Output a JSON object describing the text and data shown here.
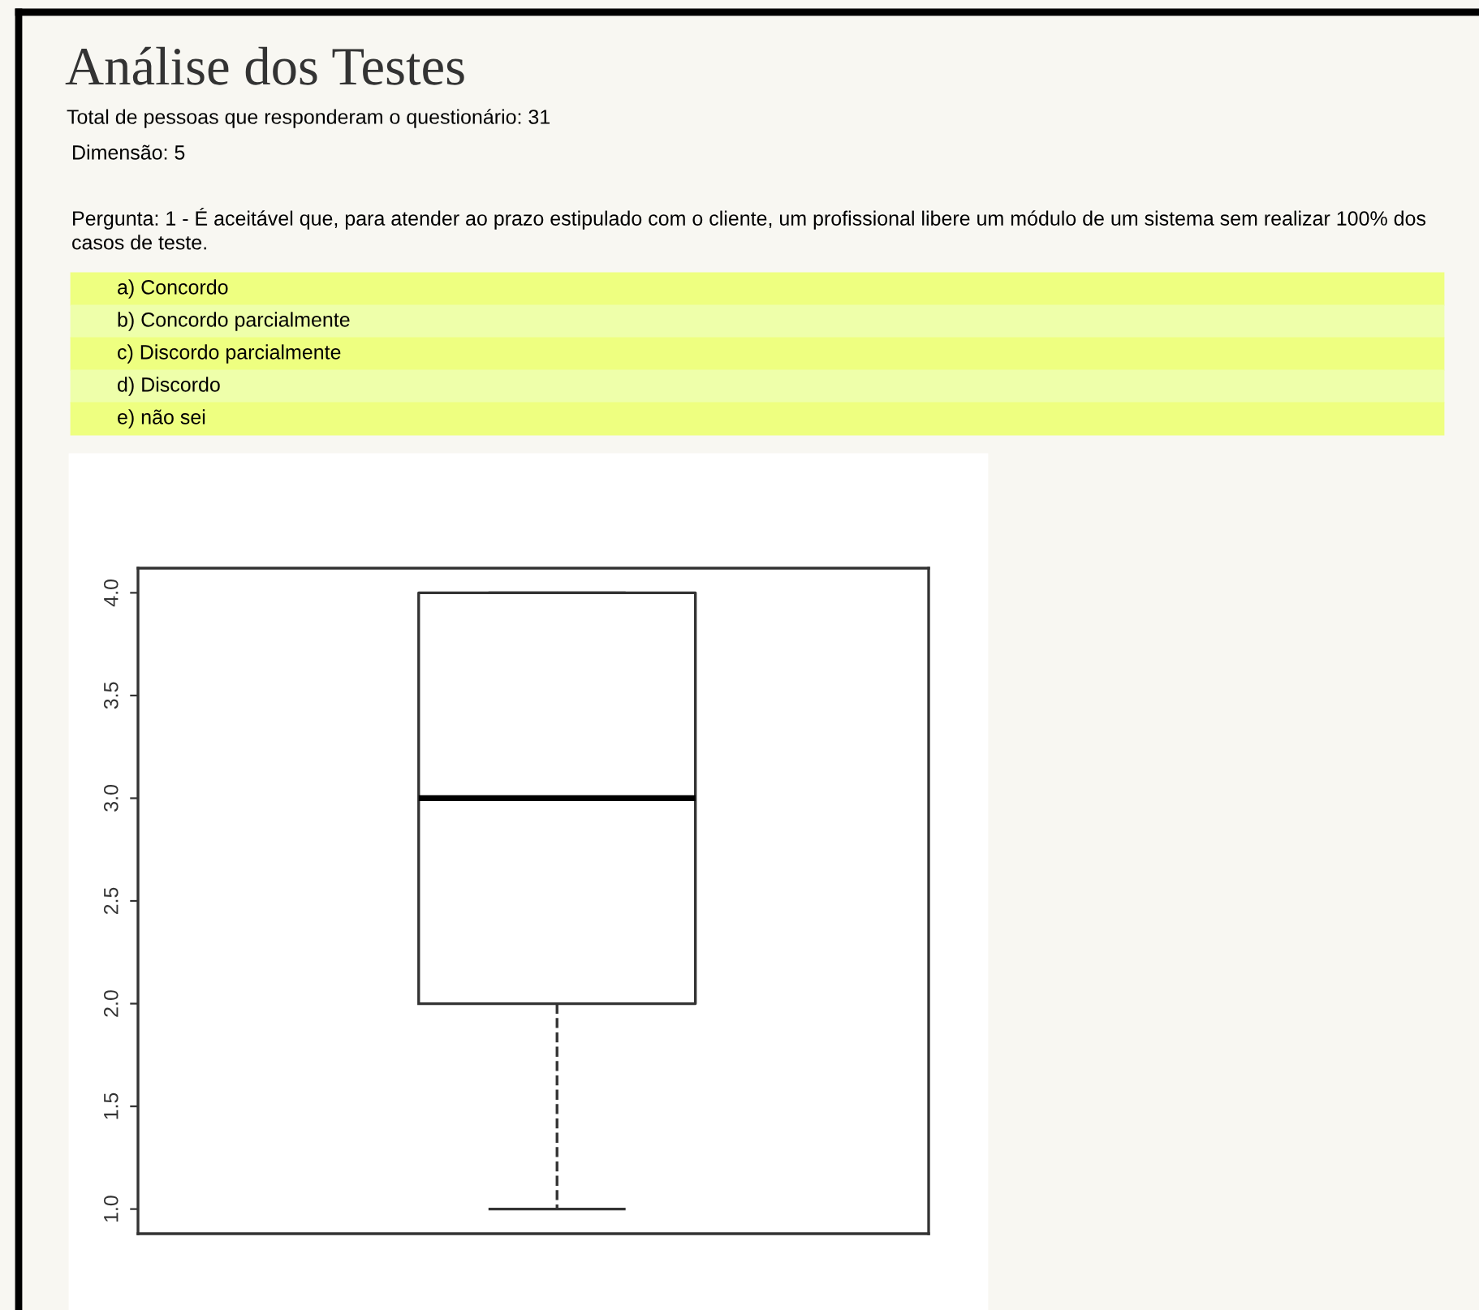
{
  "chart_data": {
    "type": "box",
    "title": "Análise dos Testes",
    "annotations": [
      "Total de pessoas que responderam o questionário: 31",
      "Dimensão: 5",
      "Pergunta: 1 - É aceitável que, para atender ao prazo estipulado com o cliente, um profissional libere um módulo de um sistema sem realizar 100% dos casos de teste.",
      "a) Concordo",
      "b) Concordo parcialmente",
      "c) Discordo parcialmente",
      "d) Discordo",
      "e) não sei"
    ],
    "categories": [
      null
    ],
    "boxes": [
      {
        "low": 1.0,
        "q1": 2.0,
        "median": 3.0,
        "q3": 4.0,
        "high": 4.0
      }
    ],
    "ylim": [
      0.88,
      4.12
    ],
    "yticks": [
      {
        "value": 1.0,
        "label": "1.0"
      },
      {
        "value": 1.5,
        "label": "1.5"
      },
      {
        "value": 2.0,
        "label": "2.0"
      },
      {
        "value": 2.5,
        "label": "2.5"
      },
      {
        "value": 3.0,
        "label": "3.0"
      },
      {
        "value": 3.5,
        "label": "3.5"
      },
      {
        "value": 4.0,
        "label": "4.0"
      }
    ],
    "grid": false,
    "legend": false
  }
}
